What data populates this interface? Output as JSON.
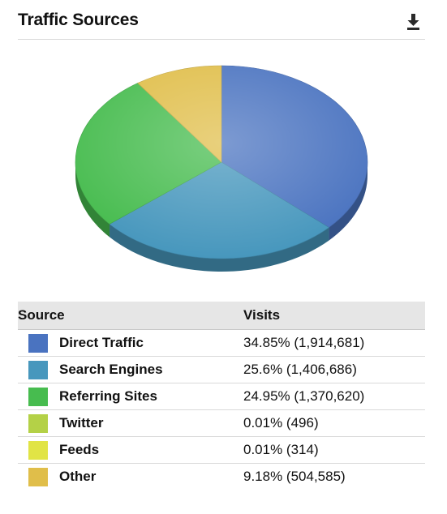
{
  "widget": {
    "title": "Traffic Sources",
    "download_icon": "download-icon"
  },
  "table": {
    "headers": {
      "source": "Source",
      "visits": "Visits"
    },
    "rows": [
      {
        "source": "Direct Traffic",
        "visits": "34.85% (1,914,681)",
        "color": "#4a73c0"
      },
      {
        "source": "Search Engines",
        "visits": "25.6% (1,406,686)",
        "color": "#4797bd"
      },
      {
        "source": "Referring Sites",
        "visits": "24.95% (1,370,620)",
        "color": "#47bc4f"
      },
      {
        "source": "Twitter",
        "visits": "0.01% (496)",
        "color": "#b4d147"
      },
      {
        "source": "Feeds",
        "visits": "0.01% (314)",
        "color": "#e1e445"
      },
      {
        "source": "Other",
        "visits": "9.18% (504,585)",
        "color": "#e0be4a"
      }
    ]
  },
  "chart_data": {
    "type": "pie",
    "title": "Traffic Sources",
    "labels": [
      "Direct Traffic",
      "Search Engines",
      "Referring Sites",
      "Twitter",
      "Feeds",
      "Other"
    ],
    "values": [
      34.85,
      25.6,
      24.95,
      0.01,
      0.01,
      9.18
    ],
    "counts": [
      1914681,
      1406686,
      1370620,
      496,
      314,
      504585
    ],
    "colors": [
      "#4a73c0",
      "#4797bd",
      "#47bc4f",
      "#b4d147",
      "#e1e445",
      "#e0be4a"
    ],
    "style": "3d-tilted",
    "legend": "table-below"
  }
}
